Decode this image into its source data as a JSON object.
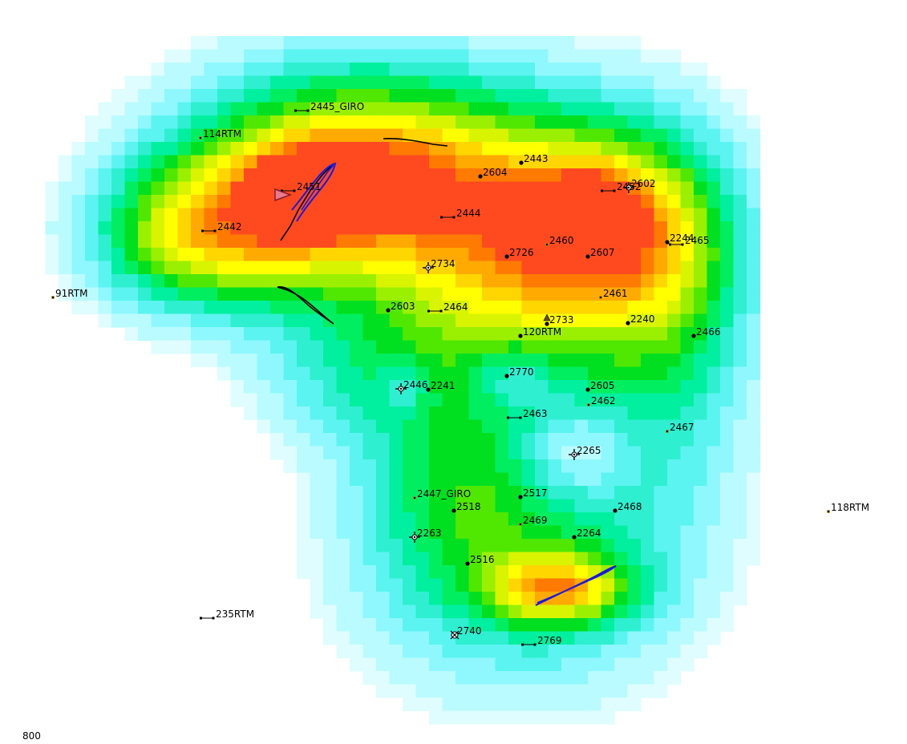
{
  "map": {
    "contour_value_label": "800",
    "palette": [
      "#ffffff",
      "#dffcff",
      "#b9fbff",
      "#8ff8ff",
      "#5cf4f0",
      "#2ef0d0",
      "#00f0a0",
      "#00ee60",
      "#00e020",
      "#50e800",
      "#9af000",
      "#d8f400",
      "#ffff00",
      "#ffd600",
      "#ffaa00",
      "#ff7a00",
      "#ff4a20"
    ],
    "fault_color": "#000000",
    "trajectory_color": "#1a1adc",
    "wells": [
      {
        "name": "2445_GIRO",
        "symbol": "bar"
      },
      {
        "name": "114RTM",
        "symbol": "dot-small"
      },
      {
        "name": "2451",
        "symbol": "bar"
      },
      {
        "name": "2442",
        "symbol": "bar"
      },
      {
        "name": "2444",
        "symbol": "bar"
      },
      {
        "name": "2604",
        "symbol": "dot"
      },
      {
        "name": "2443",
        "symbol": "dot"
      },
      {
        "name": "2602",
        "symbol": "gas"
      },
      {
        "name": "2452",
        "symbol": "bar"
      },
      {
        "name": "2244",
        "symbol": "dot"
      },
      {
        "name": "2465",
        "symbol": "bar"
      },
      {
        "name": "2460",
        "symbol": "dot-small"
      },
      {
        "name": "2726",
        "symbol": "dot"
      },
      {
        "name": "2607",
        "symbol": "dot"
      },
      {
        "name": "2734",
        "symbol": "gas"
      },
      {
        "name": "91RTM",
        "symbol": "dot-small"
      },
      {
        "name": "2461",
        "symbol": "dot-small"
      },
      {
        "name": "2603",
        "symbol": "dot"
      },
      {
        "name": "2464",
        "symbol": "bar"
      },
      {
        "name": "2733",
        "symbol": "oil"
      },
      {
        "name": "2240",
        "symbol": "dot"
      },
      {
        "name": "120RTM",
        "symbol": "dot"
      },
      {
        "name": "2466",
        "symbol": "dot"
      },
      {
        "name": "2770",
        "symbol": "dot"
      },
      {
        "name": "2446",
        "symbol": "gas"
      },
      {
        "name": "2241",
        "symbol": "dot"
      },
      {
        "name": "2605",
        "symbol": "dot"
      },
      {
        "name": "2462",
        "symbol": "dot-small"
      },
      {
        "name": "2463",
        "symbol": "bar"
      },
      {
        "name": "2467",
        "symbol": "dot-small"
      },
      {
        "name": "2265",
        "symbol": "gas"
      },
      {
        "name": "2447_GIRO",
        "symbol": "dot-small"
      },
      {
        "name": "2517",
        "symbol": "dot"
      },
      {
        "name": "2518",
        "symbol": "dot"
      },
      {
        "name": "2468",
        "symbol": "dot"
      },
      {
        "name": "118RTM",
        "symbol": "dot-small"
      },
      {
        "name": "2469",
        "symbol": "dot-small"
      },
      {
        "name": "2263",
        "symbol": "gas"
      },
      {
        "name": "2264",
        "symbol": "dot"
      },
      {
        "name": "2516",
        "symbol": "dot"
      },
      {
        "name": "235RTM",
        "symbol": "bar"
      },
      {
        "name": "2740",
        "symbol": "dry"
      },
      {
        "name": "2769",
        "symbol": "bar"
      }
    ]
  }
}
